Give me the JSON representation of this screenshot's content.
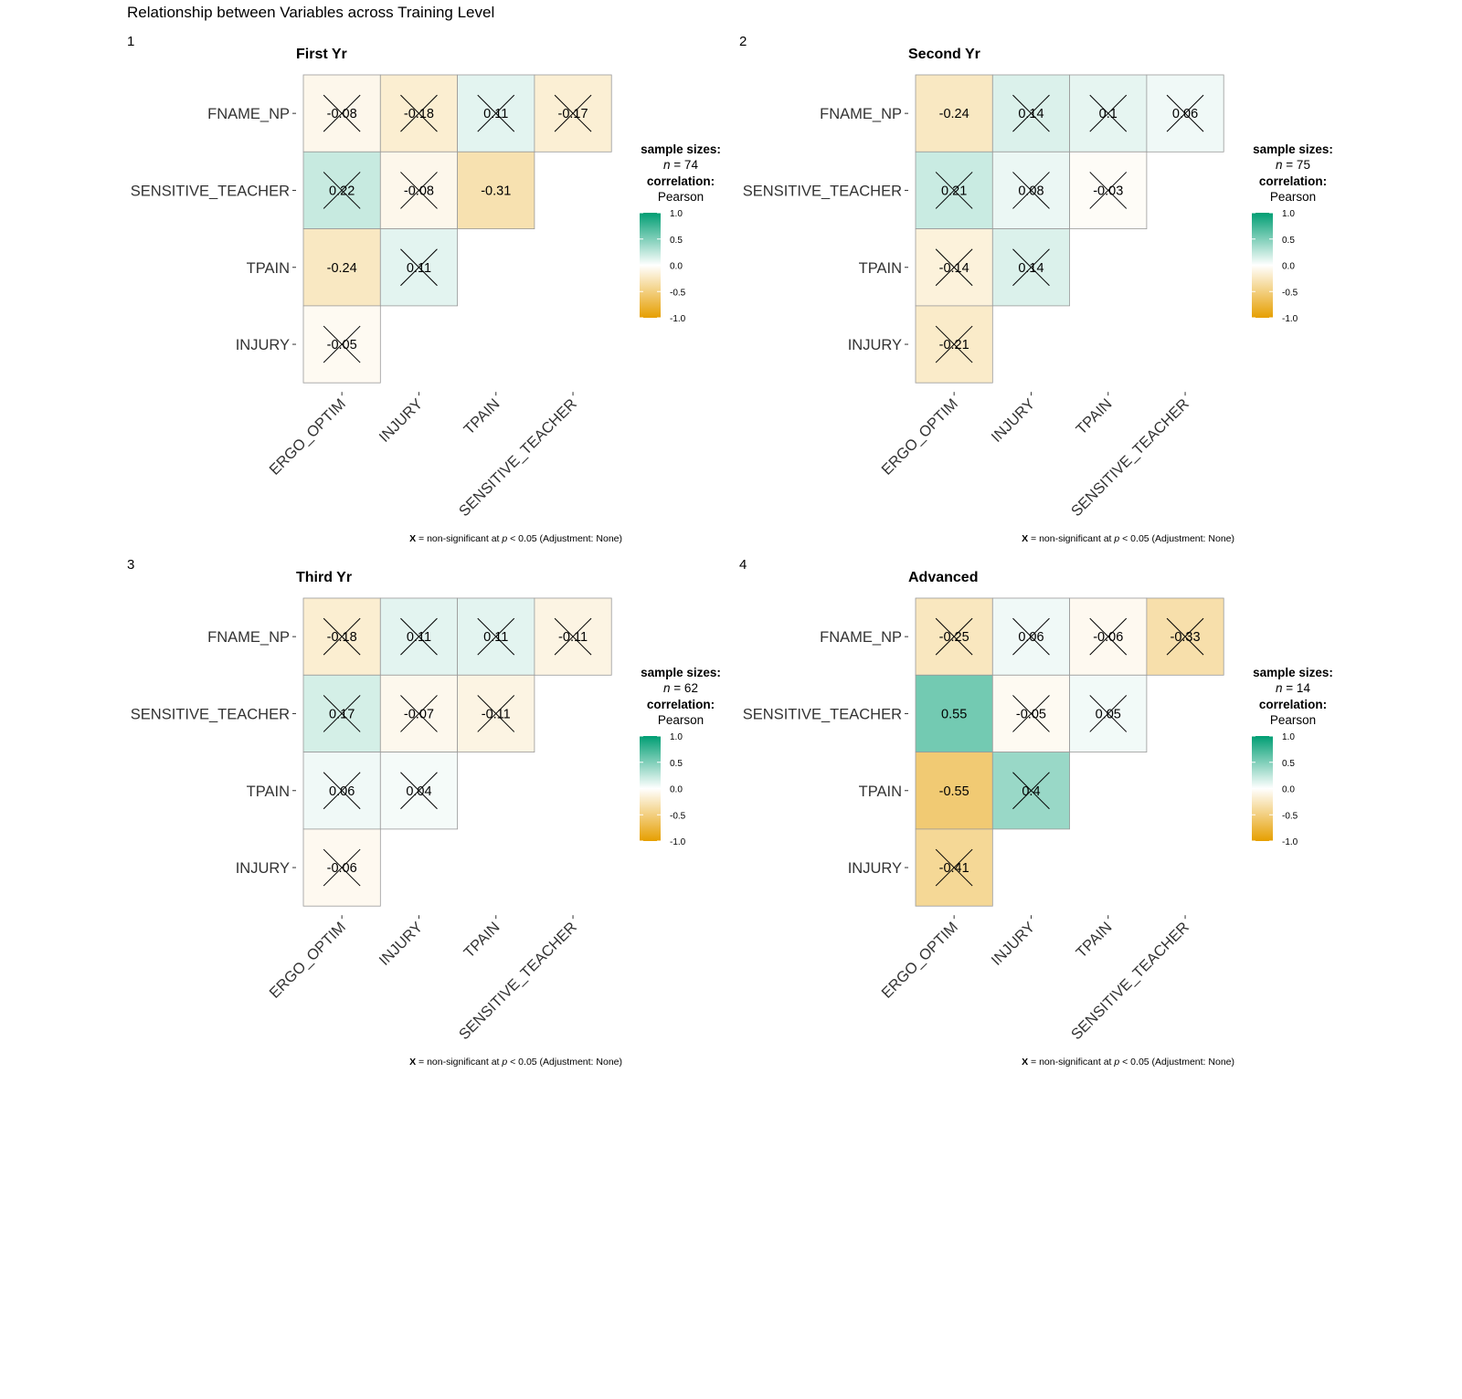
{
  "title": "Relationship between Variables across Training Level",
  "colors": {
    "negative": "#E69F00",
    "mid": "#FFFFFF",
    "positive": "#009E73"
  },
  "chart_data": [
    {
      "type": "heatmap",
      "panel_tag": "1",
      "title": "First Yr",
      "x_labels": [
        "ERGO_OPTIM",
        "INJURY",
        "TPAIN",
        "SENSITIVE_TEACHER"
      ],
      "y_labels": [
        "FNAME_NP",
        "SENSITIVE_TEACHER",
        "TPAIN",
        "INJURY"
      ],
      "cells": [
        {
          "x": "ERGO_OPTIM",
          "y": "FNAME_NP",
          "r": -0.08,
          "label": "-0.08",
          "nonsig": true
        },
        {
          "x": "INJURY",
          "y": "FNAME_NP",
          "r": -0.18,
          "label": "-0.18",
          "nonsig": true
        },
        {
          "x": "TPAIN",
          "y": "FNAME_NP",
          "r": 0.11,
          "label": "0.11",
          "nonsig": true
        },
        {
          "x": "SENSITIVE_TEACHER",
          "y": "FNAME_NP",
          "r": -0.17,
          "label": "-0.17",
          "nonsig": true
        },
        {
          "x": "ERGO_OPTIM",
          "y": "SENSITIVE_TEACHER",
          "r": 0.22,
          "label": "0.22",
          "nonsig": true
        },
        {
          "x": "INJURY",
          "y": "SENSITIVE_TEACHER",
          "r": -0.08,
          "label": "-0.08",
          "nonsig": true
        },
        {
          "x": "TPAIN",
          "y": "SENSITIVE_TEACHER",
          "r": -0.31,
          "label": "-0.31",
          "nonsig": false
        },
        {
          "x": "ERGO_OPTIM",
          "y": "TPAIN",
          "r": -0.24,
          "label": "-0.24",
          "nonsig": false
        },
        {
          "x": "INJURY",
          "y": "TPAIN",
          "r": 0.11,
          "label": "0.11",
          "nonsig": true
        },
        {
          "x": "ERGO_OPTIM",
          "y": "INJURY",
          "r": -0.05,
          "label": "-0.05",
          "nonsig": true
        }
      ],
      "legend": {
        "heading": "sample sizes:",
        "n_prefix": "n",
        "n_value": "= 74",
        "corr_heading": "correlation:",
        "corr_method": "Pearson",
        "ticks": [
          "1.0",
          "0.5",
          "0.0",
          "-0.5",
          "-1.0"
        ],
        "range": [
          -1,
          1
        ]
      },
      "caption": {
        "mark": "X",
        "text_a": " = non-significant at ",
        "p": "p",
        "text_b": " < 0.05 (Adjustment: None)"
      }
    },
    {
      "type": "heatmap",
      "panel_tag": "2",
      "title": "Second Yr",
      "x_labels": [
        "ERGO_OPTIM",
        "INJURY",
        "TPAIN",
        "SENSITIVE_TEACHER"
      ],
      "y_labels": [
        "FNAME_NP",
        "SENSITIVE_TEACHER",
        "TPAIN",
        "INJURY"
      ],
      "cells": [
        {
          "x": "ERGO_OPTIM",
          "y": "FNAME_NP",
          "r": -0.24,
          "label": "-0.24",
          "nonsig": false
        },
        {
          "x": "INJURY",
          "y": "FNAME_NP",
          "r": 0.14,
          "label": "0.14",
          "nonsig": true
        },
        {
          "x": "TPAIN",
          "y": "FNAME_NP",
          "r": 0.1,
          "label": "0.1",
          "nonsig": true
        },
        {
          "x": "SENSITIVE_TEACHER",
          "y": "FNAME_NP",
          "r": 0.06,
          "label": "0.06",
          "nonsig": true
        },
        {
          "x": "ERGO_OPTIM",
          "y": "SENSITIVE_TEACHER",
          "r": 0.21,
          "label": "0.21",
          "nonsig": true
        },
        {
          "x": "INJURY",
          "y": "SENSITIVE_TEACHER",
          "r": 0.08,
          "label": "0.08",
          "nonsig": true
        },
        {
          "x": "TPAIN",
          "y": "SENSITIVE_TEACHER",
          "r": -0.03,
          "label": "-0.03",
          "nonsig": true
        },
        {
          "x": "ERGO_OPTIM",
          "y": "TPAIN",
          "r": -0.14,
          "label": "-0.14",
          "nonsig": true
        },
        {
          "x": "INJURY",
          "y": "TPAIN",
          "r": 0.14,
          "label": "0.14",
          "nonsig": true
        },
        {
          "x": "ERGO_OPTIM",
          "y": "INJURY",
          "r": -0.21,
          "label": "-0.21",
          "nonsig": true
        }
      ],
      "legend": {
        "heading": "sample sizes:",
        "n_prefix": "n",
        "n_value": "= 75",
        "corr_heading": "correlation:",
        "corr_method": "Pearson",
        "ticks": [
          "1.0",
          "0.5",
          "0.0",
          "-0.5",
          "-1.0"
        ],
        "range": [
          -1,
          1
        ]
      },
      "caption": {
        "mark": "X",
        "text_a": " = non-significant at ",
        "p": "p",
        "text_b": " < 0.05 (Adjustment: None)"
      }
    },
    {
      "type": "heatmap",
      "panel_tag": "3",
      "title": "Third Yr",
      "x_labels": [
        "ERGO_OPTIM",
        "INJURY",
        "TPAIN",
        "SENSITIVE_TEACHER"
      ],
      "y_labels": [
        "FNAME_NP",
        "SENSITIVE_TEACHER",
        "TPAIN",
        "INJURY"
      ],
      "cells": [
        {
          "x": "ERGO_OPTIM",
          "y": "FNAME_NP",
          "r": -0.18,
          "label": "-0.18",
          "nonsig": true
        },
        {
          "x": "INJURY",
          "y": "FNAME_NP",
          "r": 0.11,
          "label": "0.11",
          "nonsig": true
        },
        {
          "x": "TPAIN",
          "y": "FNAME_NP",
          "r": 0.11,
          "label": "0.11",
          "nonsig": true
        },
        {
          "x": "SENSITIVE_TEACHER",
          "y": "FNAME_NP",
          "r": -0.11,
          "label": "-0.11",
          "nonsig": true
        },
        {
          "x": "ERGO_OPTIM",
          "y": "SENSITIVE_TEACHER",
          "r": 0.17,
          "label": "0.17",
          "nonsig": true
        },
        {
          "x": "INJURY",
          "y": "SENSITIVE_TEACHER",
          "r": -0.07,
          "label": "-0.07",
          "nonsig": true
        },
        {
          "x": "TPAIN",
          "y": "SENSITIVE_TEACHER",
          "r": -0.11,
          "label": "-0.11",
          "nonsig": true
        },
        {
          "x": "ERGO_OPTIM",
          "y": "TPAIN",
          "r": 0.06,
          "label": "0.06",
          "nonsig": true
        },
        {
          "x": "INJURY",
          "y": "TPAIN",
          "r": 0.04,
          "label": "0.04",
          "nonsig": true
        },
        {
          "x": "ERGO_OPTIM",
          "y": "INJURY",
          "r": -0.06,
          "label": "-0.06",
          "nonsig": true
        }
      ],
      "legend": {
        "heading": "sample sizes:",
        "n_prefix": "n",
        "n_value": "= 62",
        "corr_heading": "correlation:",
        "corr_method": "Pearson",
        "ticks": [
          "1.0",
          "0.5",
          "0.0",
          "-0.5",
          "-1.0"
        ],
        "range": [
          -1,
          1
        ]
      },
      "caption": {
        "mark": "X",
        "text_a": " = non-significant at ",
        "p": "p",
        "text_b": " < 0.05 (Adjustment: None)"
      }
    },
    {
      "type": "heatmap",
      "panel_tag": "4",
      "title": "Advanced",
      "x_labels": [
        "ERGO_OPTIM",
        "INJURY",
        "TPAIN",
        "SENSITIVE_TEACHER"
      ],
      "y_labels": [
        "FNAME_NP",
        "SENSITIVE_TEACHER",
        "TPAIN",
        "INJURY"
      ],
      "cells": [
        {
          "x": "ERGO_OPTIM",
          "y": "FNAME_NP",
          "r": -0.25,
          "label": "-0.25",
          "nonsig": true
        },
        {
          "x": "INJURY",
          "y": "FNAME_NP",
          "r": 0.06,
          "label": "0.06",
          "nonsig": true
        },
        {
          "x": "TPAIN",
          "y": "FNAME_NP",
          "r": -0.06,
          "label": "-0.06",
          "nonsig": true
        },
        {
          "x": "SENSITIVE_TEACHER",
          "y": "FNAME_NP",
          "r": -0.33,
          "label": "-0.33",
          "nonsig": true
        },
        {
          "x": "ERGO_OPTIM",
          "y": "SENSITIVE_TEACHER",
          "r": 0.55,
          "label": "0.55",
          "nonsig": false
        },
        {
          "x": "INJURY",
          "y": "SENSITIVE_TEACHER",
          "r": -0.05,
          "label": "-0.05",
          "nonsig": true
        },
        {
          "x": "TPAIN",
          "y": "SENSITIVE_TEACHER",
          "r": 0.05,
          "label": "0.05",
          "nonsig": true
        },
        {
          "x": "ERGO_OPTIM",
          "y": "TPAIN",
          "r": -0.55,
          "label": "-0.55",
          "nonsig": false
        },
        {
          "x": "INJURY",
          "y": "TPAIN",
          "r": 0.4,
          "label": "0.4",
          "nonsig": true
        },
        {
          "x": "ERGO_OPTIM",
          "y": "INJURY",
          "r": -0.41,
          "label": "-0.41",
          "nonsig": true
        }
      ],
      "legend": {
        "heading": "sample sizes:",
        "n_prefix": "n",
        "n_value": "= 14",
        "corr_heading": "correlation:",
        "corr_method": "Pearson",
        "ticks": [
          "1.0",
          "0.5",
          "0.0",
          "-0.5",
          "-1.0"
        ],
        "range": [
          -1,
          1
        ]
      },
      "caption": {
        "mark": "X",
        "text_a": " = non-significant at ",
        "p": "p",
        "text_b": " < 0.05 (Adjustment: None)"
      }
    }
  ]
}
